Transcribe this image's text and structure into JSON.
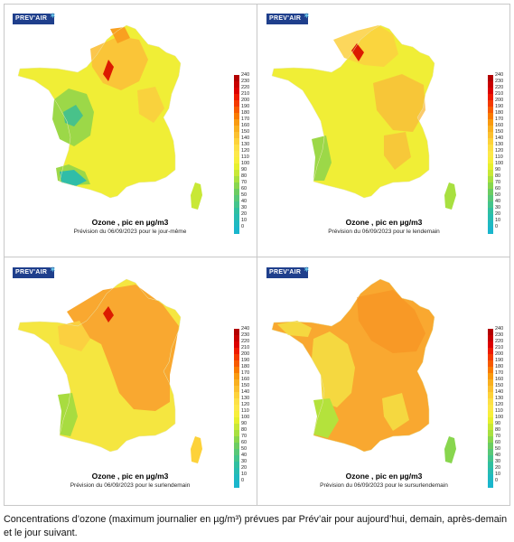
{
  "logo": "PREV'AIR",
  "scale": {
    "labels": [
      "240",
      "230",
      "220",
      "210",
      "200",
      "190",
      "180",
      "170",
      "160",
      "150",
      "140",
      "130",
      "120",
      "110",
      "100",
      "90",
      "80",
      "70",
      "60",
      "50",
      "40",
      "30",
      "20",
      "10",
      "0"
    ],
    "colors": [
      "#b30000",
      "#c80000",
      "#dc0000",
      "#ee1a00",
      "#f43a00",
      "#f75a00",
      "#f97a00",
      "#f99a10",
      "#f9b020",
      "#fbc030",
      "#fdd23a",
      "#fde046",
      "#fde84a",
      "#f7ef3c",
      "#e6f02e",
      "#c8e836",
      "#a8e040",
      "#88d64e",
      "#6ccc62",
      "#58c878",
      "#44c48c",
      "#30bfa0",
      "#28bcb0",
      "#1fb9c0",
      "#1ab6cc"
    ]
  },
  "panels": [
    {
      "title": "Ozone , pic en µg/m3",
      "subtitle": "Prévision du 06/09/2023 pour le jour-même"
    },
    {
      "title": "Ozone , pic en µg/m3",
      "subtitle": "Prévision du 06/09/2023 pour le lendemain"
    },
    {
      "title": "Ozone , pic en µg/m3",
      "subtitle": "Prévision du 06/09/2023 pour le surlendemain"
    },
    {
      "title": "Ozone , pic en µg/m3",
      "subtitle": "Prévision du 06/09/2023 pour le sursurlendemain"
    }
  ],
  "caption": "Concentrations d’ozone (maximum journalier en µg/m³) prévues par Prév’air pour aujourd’hui, demain, après-demain et le jour suivant."
}
